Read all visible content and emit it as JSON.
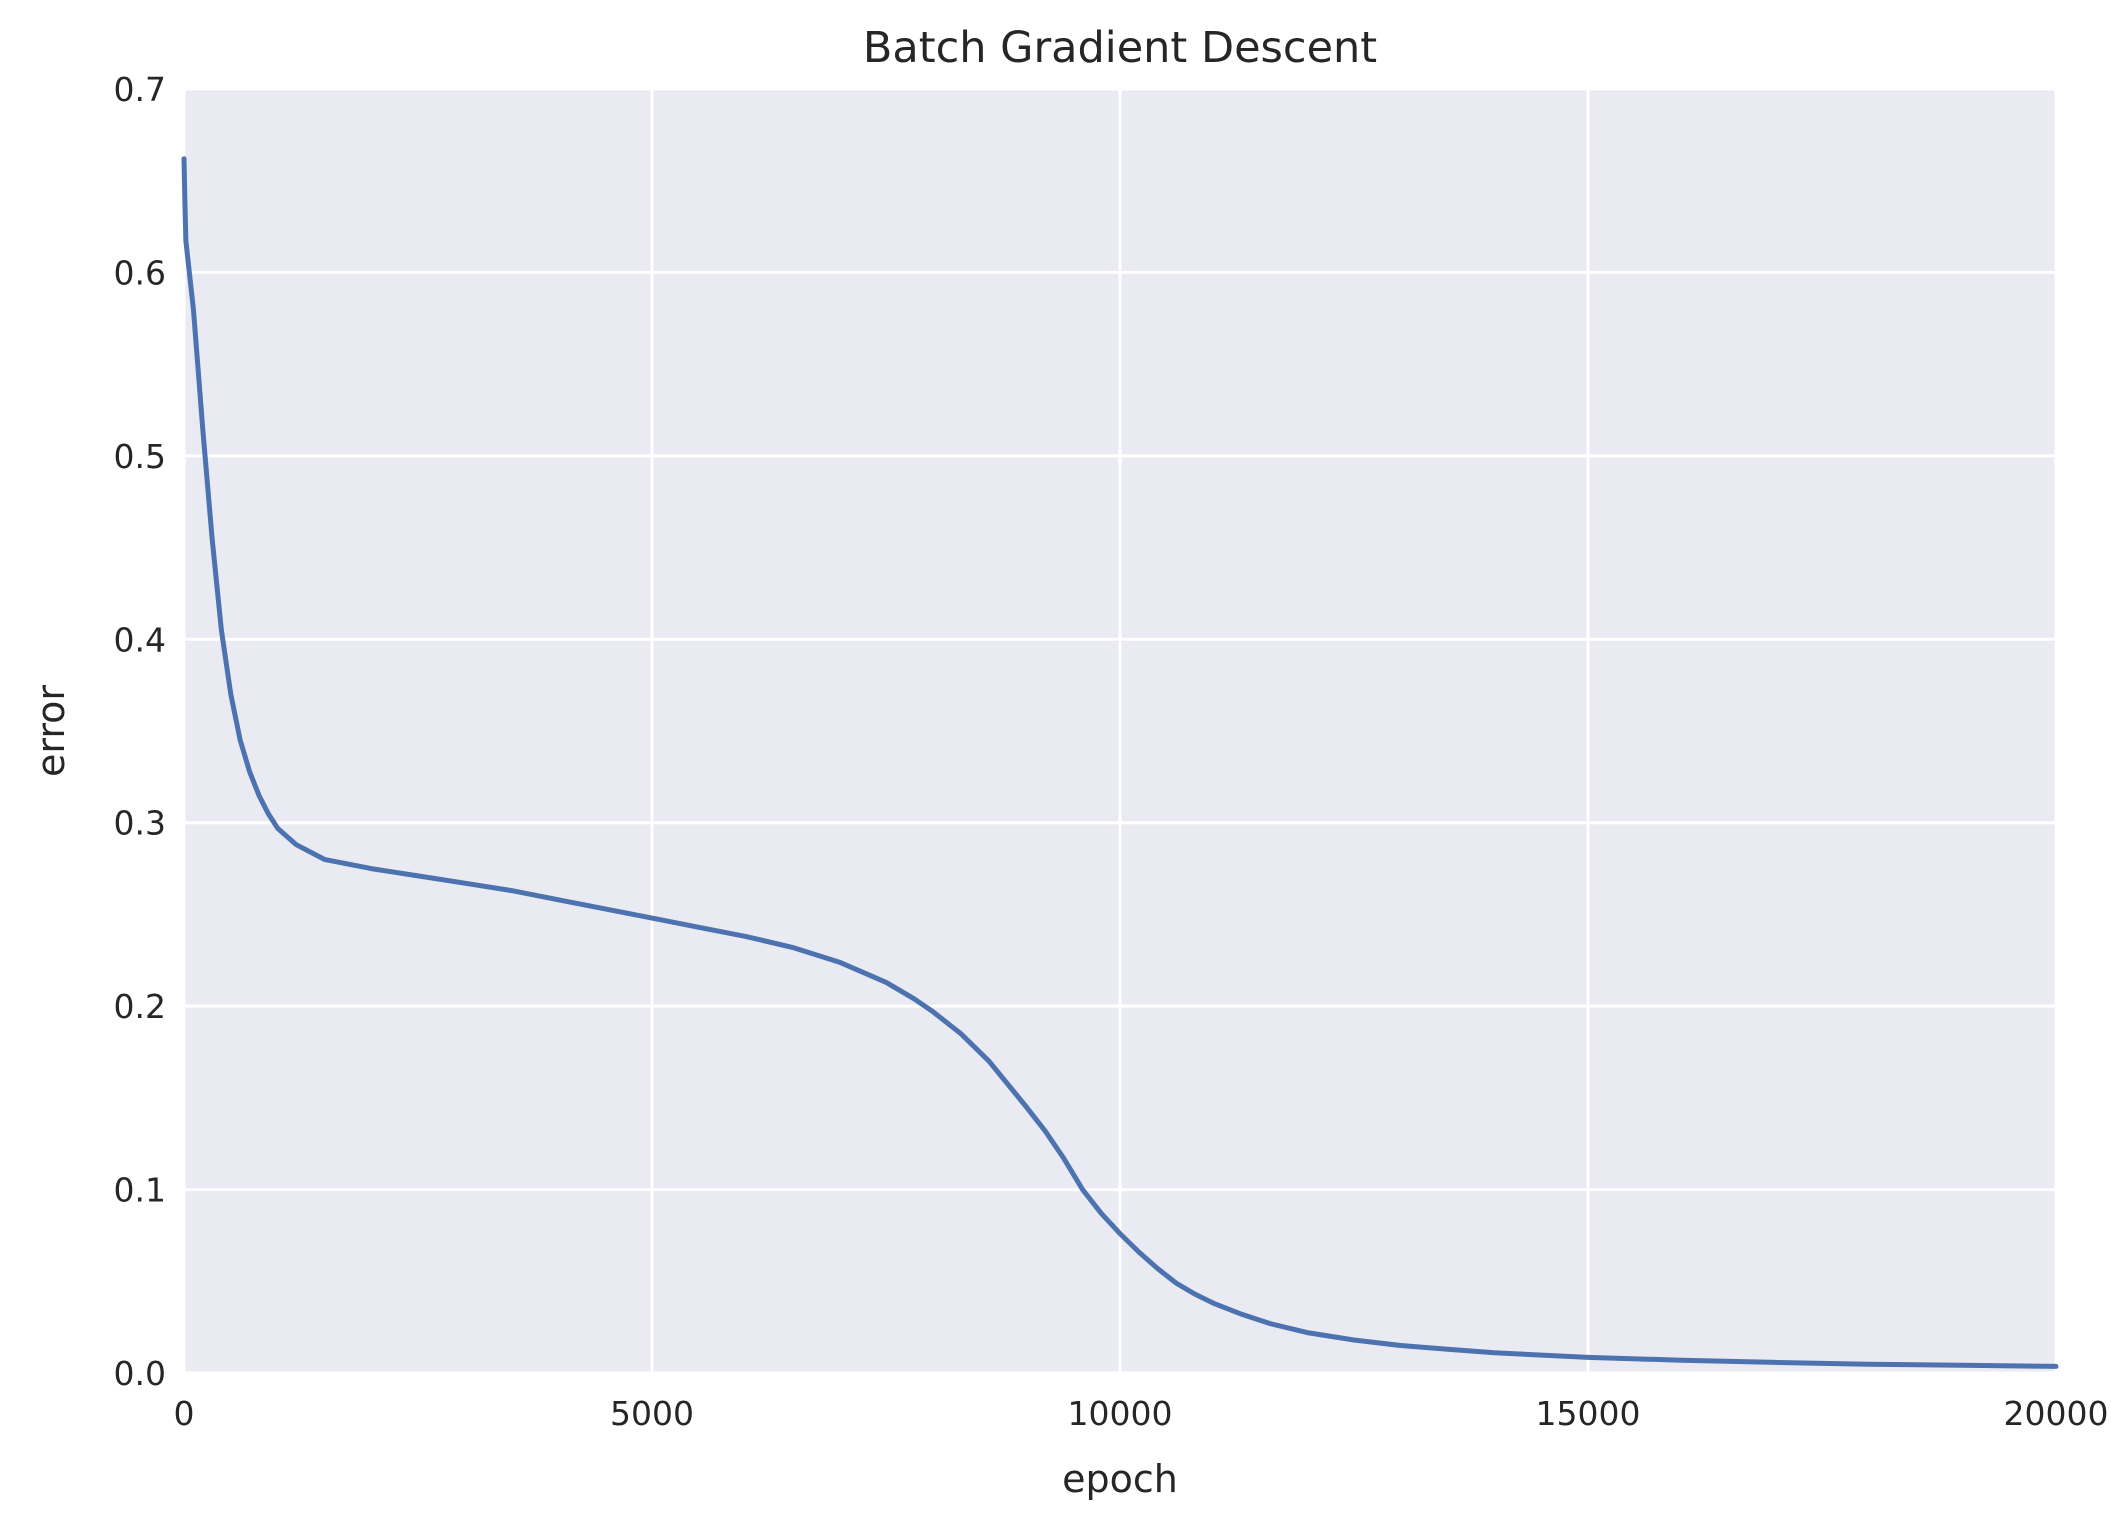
{
  "chart_data": {
    "type": "line",
    "title": "Batch Gradient Descent",
    "xlabel": "epoch",
    "ylabel": "error",
    "xlim": [
      0,
      20000
    ],
    "ylim": [
      0,
      0.7
    ],
    "xticks": [
      0,
      5000,
      10000,
      15000,
      20000
    ],
    "xtick_labels": [
      "0",
      "5000",
      "10000",
      "15000",
      "20000"
    ],
    "yticks": [
      0,
      0.1,
      0.2,
      0.3,
      0.4,
      0.5,
      0.6,
      0.7
    ],
    "ytick_labels": [
      "0.0",
      "0.1",
      "0.2",
      "0.3",
      "0.4",
      "0.5",
      "0.6",
      "0.7"
    ],
    "grid": true,
    "background_color": "#eaeaf2",
    "grid_color": "#ffffff",
    "series": [
      {
        "color": "#4c72b0",
        "x": [
          0,
          10,
          20,
          100,
          200,
          300,
          400,
          500,
          600,
          700,
          800,
          900,
          1000,
          1200,
          1500,
          2000,
          2500,
          3000,
          3500,
          4000,
          4500,
          5000,
          5500,
          6000,
          6500,
          7000,
          7500,
          7800,
          8000,
          8300,
          8600,
          9000,
          9200,
          9400,
          9600,
          9800,
          10000,
          10200,
          10400,
          10600,
          10800,
          11000,
          11300,
          11600,
          12000,
          12500,
          13000,
          13500,
          14000,
          15000,
          16000,
          17000,
          18000,
          19000,
          20000
        ],
        "y": [
          0.662,
          0.638,
          0.617,
          0.58,
          0.515,
          0.455,
          0.405,
          0.37,
          0.345,
          0.328,
          0.315,
          0.305,
          0.297,
          0.288,
          0.28,
          0.275,
          0.271,
          0.267,
          0.263,
          0.258,
          0.253,
          0.248,
          0.243,
          0.238,
          0.232,
          0.224,
          0.213,
          0.204,
          0.197,
          0.185,
          0.17,
          0.145,
          0.132,
          0.117,
          0.1,
          0.087,
          0.076,
          0.066,
          0.057,
          0.049,
          0.043,
          0.038,
          0.032,
          0.027,
          0.022,
          0.018,
          0.015,
          0.013,
          0.011,
          0.0085,
          0.007,
          0.0058,
          0.0048,
          0.0042,
          0.0036
        ]
      }
    ]
  }
}
